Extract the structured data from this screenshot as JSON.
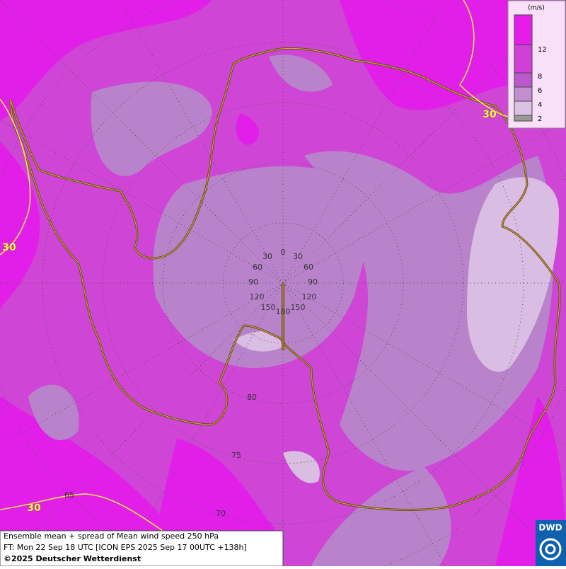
{
  "legend": {
    "unit": "(m/s)",
    "labels": [
      "12",
      "8",
      "6",
      "4",
      "2"
    ]
  },
  "contour_labels": [
    "30",
    "30",
    "30"
  ],
  "meridian_labels": [
    "0",
    "30",
    "60",
    "90",
    "120",
    "150",
    "180",
    "30",
    "60",
    "90",
    "120",
    "150"
  ],
  "latitude_labels": [
    "80",
    "75",
    "70",
    "65"
  ],
  "caption": {
    "line1": "Ensemble mean + spread of Mean wind speed 250 hPa",
    "line2": "FT: Mon 22 Sep 18 UTC [ICON EPS 2025 Sep 17 00UTC +138h]",
    "line3": "©2025 Deutscher Wetterdienst"
  },
  "logo": "DWD"
}
